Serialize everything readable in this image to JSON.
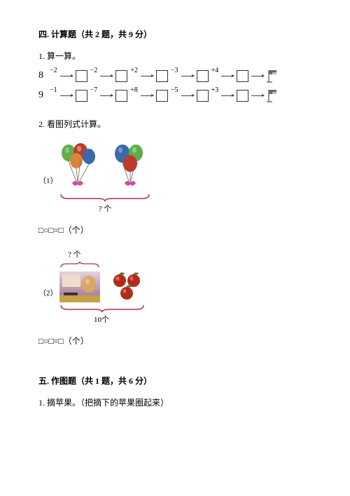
{
  "section4": {
    "title": "四. 计算题（共 2 题，共 9 分）",
    "q1": {
      "label": "1. 算一算。",
      "chains": [
        {
          "start": "8",
          "ops": [
            "−2",
            "−2",
            "+2",
            "−3",
            "+4"
          ]
        },
        {
          "start": "9",
          "ops": [
            "−1",
            "−7",
            "+8",
            "−5",
            "+3"
          ]
        }
      ]
    },
    "q2": {
      "label": "2. 看图列式计算。",
      "part1": {
        "sub": "（1）",
        "brace_label": "? 个",
        "equation": "□○□=□（个）"
      },
      "part2": {
        "sub": "（2）",
        "top_label": "? 个",
        "brace_label": "10个",
        "equation": "□○□=□（个）"
      }
    }
  },
  "section5": {
    "title": "五. 作图题（共 1 题，共 6 分）",
    "q1": {
      "label": "1. 摘苹果。（把摘下的苹果圈起来）"
    }
  },
  "colors": {
    "balloon_green": "#5fae4a",
    "balloon_red": "#c03a2a",
    "balloon_blue": "#3a6aa8",
    "balloon_orange": "#d9863a",
    "bow": "#d64a9a",
    "apple": "#b22a1a",
    "apple_leaf": "#4a7a2a",
    "brace": "#a8344a",
    "flag_dark": "#6a6a6a",
    "flag_light": "#bcbcbc",
    "box_gradient_top": "#e6d2e0",
    "box_gradient_bot": "#9a6a8a"
  }
}
